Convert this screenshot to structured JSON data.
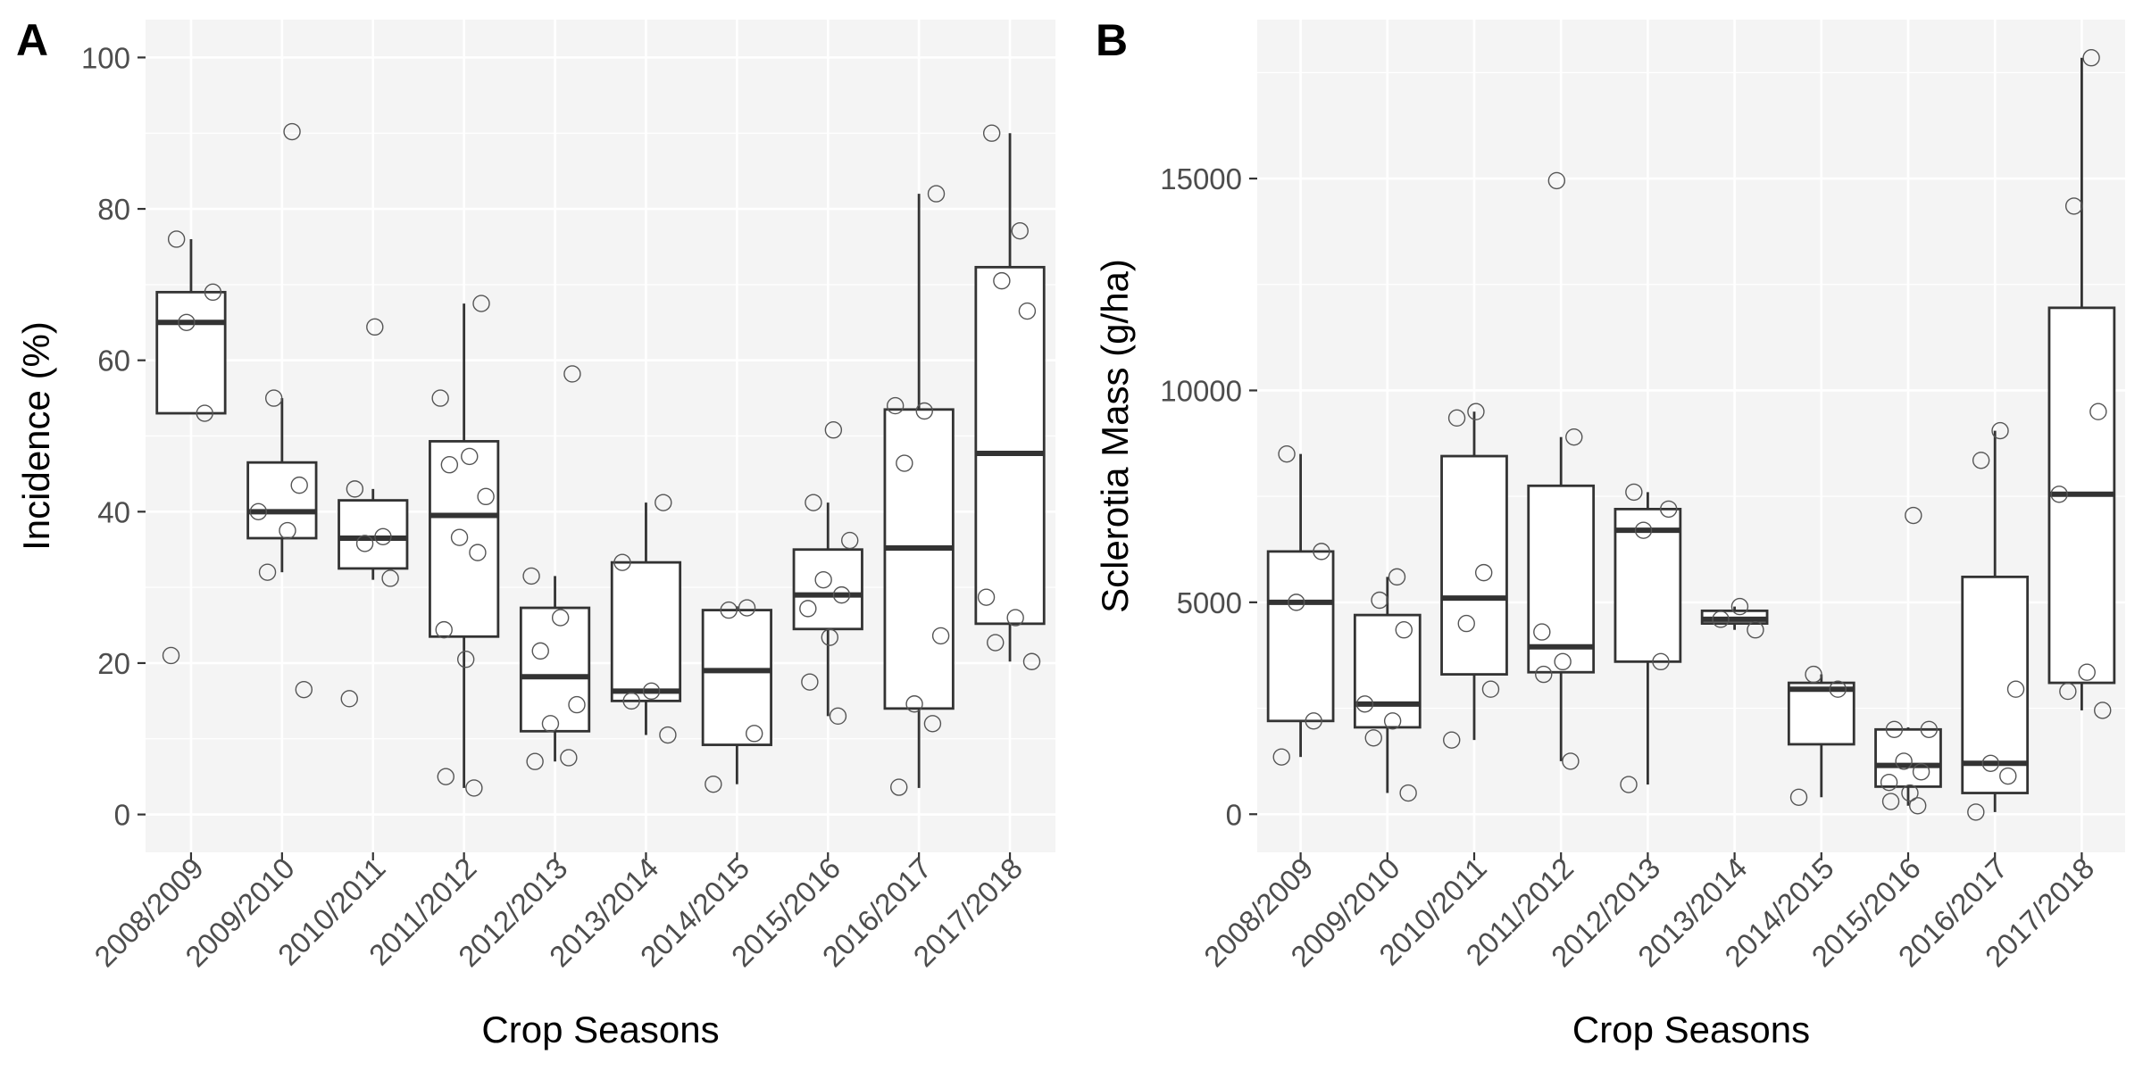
{
  "chart_data": [
    {
      "type": "box",
      "panel_label": "A",
      "xlabel": "Crop Seasons",
      "ylabel": "Incidence (%)",
      "categories": [
        "2008/2009",
        "2009/2010",
        "2010/2011",
        "2011/2012",
        "2012/2013",
        "2013/2014",
        "2014/2015",
        "2015/2016",
        "2016/2017",
        "2017/2018"
      ],
      "ylim": [
        -5,
        105
      ],
      "yticks": [
        0,
        20,
        40,
        60,
        80,
        100
      ],
      "ytick_labels": [
        "0",
        "20",
        "40",
        "60",
        "80",
        "100"
      ],
      "grid": true,
      "boxes": [
        {
          "q1": 53,
          "median": 65,
          "q3": 69,
          "whisker_low": 53,
          "whisker_high": 76
        },
        {
          "q1": 36.5,
          "median": 40,
          "q3": 46.5,
          "whisker_low": 32,
          "whisker_high": 55
        },
        {
          "q1": 32.5,
          "median": 36.5,
          "q3": 41.5,
          "whisker_low": 31,
          "whisker_high": 43
        },
        {
          "q1": 23.5,
          "median": 39.5,
          "q3": 49.3,
          "whisker_low": 3.5,
          "whisker_high": 67.5
        },
        {
          "q1": 11,
          "median": 18.2,
          "q3": 27.3,
          "whisker_low": 7,
          "whisker_high": 31.5
        },
        {
          "q1": 15,
          "median": 16.3,
          "q3": 33.3,
          "whisker_low": 10.5,
          "whisker_high": 41.2
        },
        {
          "q1": 9.2,
          "median": 19,
          "q3": 27,
          "whisker_low": 4,
          "whisker_high": 27.5
        },
        {
          "q1": 24.5,
          "median": 29,
          "q3": 35,
          "whisker_low": 13,
          "whisker_high": 41.2
        },
        {
          "q1": 14,
          "median": 35.2,
          "q3": 53.5,
          "whisker_low": 3.5,
          "whisker_high": 82
        },
        {
          "q1": 25.2,
          "median": 47.7,
          "q3": 72.3,
          "whisker_low": 20.2,
          "whisker_high": 90
        }
      ],
      "points": [
        [
          21,
          53,
          65,
          69,
          76
        ],
        [
          16.5,
          32,
          37.5,
          40,
          43.5,
          55,
          90.2
        ],
        [
          15.3,
          31.2,
          35.8,
          36.7,
          43,
          64.4
        ],
        [
          3.5,
          5,
          20.5,
          24.4,
          34.6,
          36.6,
          42,
          46.2,
          47.3,
          55,
          67.5
        ],
        [
          7,
          7.5,
          12,
          14.5,
          21.6,
          26,
          31.5,
          58.2
        ],
        [
          10.5,
          15,
          16.3,
          33.3,
          41.2
        ],
        [
          4,
          10.7,
          27,
          27.3
        ],
        [
          13,
          17.5,
          23.4,
          27.2,
          29,
          31,
          36.2,
          41.2,
          50.8
        ],
        [
          3.6,
          12,
          14.6,
          23.6,
          46.4,
          53.3,
          54,
          82
        ],
        [
          20.2,
          22.7,
          26,
          28.7,
          66.5,
          70.5,
          77.1,
          90
        ]
      ]
    },
    {
      "type": "box",
      "panel_label": "B",
      "xlabel": "Crop Seasons",
      "ylabel": "Sclerotia Mass (g/ha)",
      "categories": [
        "2008/2009",
        "2009/2010",
        "2010/2011",
        "2011/2012",
        "2012/2013",
        "2013/2014",
        "2014/2015",
        "2015/2016",
        "2016/2017",
        "2017/2018"
      ],
      "ylim": [
        -900,
        18750
      ],
      "yticks": [
        0,
        5000,
        10000,
        15000
      ],
      "ytick_labels": [
        "0",
        "5000",
        "10000",
        "15000"
      ],
      "grid": true,
      "boxes": [
        {
          "q1": 2200,
          "median": 5000,
          "q3": 6200,
          "whisker_low": 1350,
          "whisker_high": 8500
        },
        {
          "q1": 2050,
          "median": 2600,
          "q3": 4700,
          "whisker_low": 500,
          "whisker_high": 5600
        },
        {
          "q1": 3300,
          "median": 5100,
          "q3": 8450,
          "whisker_low": 1750,
          "whisker_high": 9500
        },
        {
          "q1": 3350,
          "median": 3950,
          "q3": 7750,
          "whisker_low": 1250,
          "whisker_high": 8900
        },
        {
          "q1": 3600,
          "median": 6700,
          "q3": 7200,
          "whisker_low": 700,
          "whisker_high": 7600
        },
        {
          "q1": 4500,
          "median": 4600,
          "q3": 4800,
          "whisker_low": 4350,
          "whisker_high": 4900
        },
        {
          "q1": 1650,
          "median": 2950,
          "q3": 3100,
          "whisker_low": 400,
          "whisker_high": 3300
        },
        {
          "q1": 650,
          "median": 1150,
          "q3": 2000,
          "whisker_low": 200,
          "whisker_high": 2050
        },
        {
          "q1": 500,
          "median": 1200,
          "q3": 5600,
          "whisker_low": 50,
          "whisker_high": 9050
        },
        {
          "q1": 3100,
          "median": 7550,
          "q3": 11950,
          "whisker_low": 2450,
          "whisker_high": 17850
        }
      ],
      "points": [
        [
          1350,
          2200,
          5000,
          6200,
          8500
        ],
        [
          500,
          1800,
          2200,
          2600,
          4350,
          5050,
          5600
        ],
        [
          1750,
          2950,
          4500,
          5700,
          9350,
          9500
        ],
        [
          1250,
          3300,
          3600,
          4300,
          8900,
          14950
        ],
        [
          700,
          3600,
          6700,
          7200,
          7600
        ],
        [
          4350,
          4600,
          4900
        ],
        [
          400,
          2950,
          3300
        ],
        [
          200,
          300,
          500,
          750,
          1000,
          1250,
          2000,
          2000,
          7050
        ],
        [
          50,
          900,
          1200,
          2950,
          8350,
          9050
        ],
        [
          2450,
          2900,
          3350,
          7550,
          9500,
          14350,
          17850
        ]
      ]
    }
  ]
}
